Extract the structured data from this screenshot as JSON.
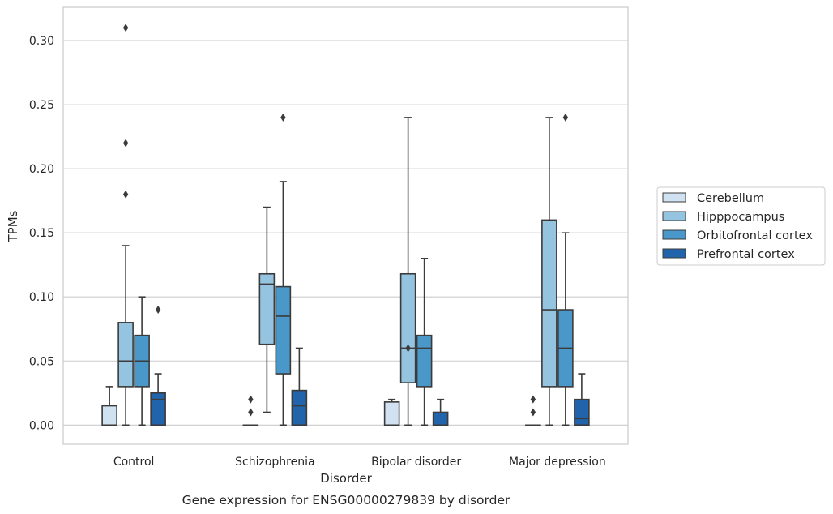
{
  "chart_data": {
    "type": "boxplot",
    "title": "",
    "caption": "Gene expression for ENSG00000279839 by disorder",
    "xlabel": "Disorder",
    "ylabel": "TPMs",
    "ylim": [
      -0.015,
      0.326
    ],
    "yticks": [
      0.0,
      0.05,
      0.1,
      0.15,
      0.2,
      0.25,
      0.3
    ],
    "ytick_labels": [
      "0.00",
      "0.05",
      "0.10",
      "0.15",
      "0.20",
      "0.25",
      "0.30"
    ],
    "grid": "horizontal",
    "legend_position": "right",
    "categories": [
      "Control",
      "Schizophrenia",
      "Bipolar disorder",
      "Major depression"
    ],
    "series": [
      {
        "name": "Cerebellum",
        "color": "#d0e1f2",
        "boxes": [
          {
            "whislo": 0.0,
            "q1": 0.0,
            "med": 0.0,
            "q3": 0.015,
            "whishi": 0.03,
            "fliers": []
          },
          {
            "whislo": 0.0,
            "q1": 0.0,
            "med": 0.0,
            "q3": 0.0,
            "whishi": 0.0,
            "fliers": [
              0.01,
              0.02
            ]
          },
          {
            "whislo": 0.0,
            "q1": 0.0,
            "med": 0.0,
            "q3": 0.018,
            "whishi": 0.02,
            "fliers": []
          },
          {
            "whislo": 0.0,
            "q1": 0.0,
            "med": 0.0,
            "q3": 0.0,
            "whishi": 0.0,
            "fliers": [
              0.01,
              0.02
            ]
          }
        ]
      },
      {
        "name": "Hipppocampus",
        "color": "#94c4df",
        "boxes": [
          {
            "whislo": 0.0,
            "q1": 0.03,
            "med": 0.05,
            "q3": 0.08,
            "whishi": 0.14,
            "fliers": [
              0.18,
              0.22,
              0.31
            ]
          },
          {
            "whislo": 0.01,
            "q1": 0.063,
            "med": 0.11,
            "q3": 0.118,
            "whishi": 0.17,
            "fliers": []
          },
          {
            "whislo": 0.0,
            "q1": 0.033,
            "med": 0.06,
            "q3": 0.118,
            "whishi": 0.24,
            "fliers": [
              0.06
            ]
          },
          {
            "whislo": 0.0,
            "q1": 0.03,
            "med": 0.09,
            "q3": 0.16,
            "whishi": 0.24,
            "fliers": []
          }
        ]
      },
      {
        "name": "Orbitofrontal cortex",
        "color": "#4a98c9",
        "boxes": [
          {
            "whislo": 0.0,
            "q1": 0.03,
            "med": 0.05,
            "q3": 0.07,
            "whishi": 0.1,
            "fliers": []
          },
          {
            "whislo": 0.0,
            "q1": 0.04,
            "med": 0.085,
            "q3": 0.108,
            "whishi": 0.19,
            "fliers": [
              0.24
            ]
          },
          {
            "whislo": 0.0,
            "q1": 0.03,
            "med": 0.06,
            "q3": 0.07,
            "whishi": 0.13,
            "fliers": []
          },
          {
            "whislo": 0.0,
            "q1": 0.03,
            "med": 0.06,
            "q3": 0.09,
            "whishi": 0.15,
            "fliers": [
              0.24
            ]
          }
        ]
      },
      {
        "name": "Prefrontal cortex",
        "color": "#2164ab",
        "boxes": [
          {
            "whislo": 0.0,
            "q1": 0.0,
            "med": 0.02,
            "q3": 0.025,
            "whishi": 0.04,
            "fliers": [
              0.09
            ]
          },
          {
            "whislo": 0.0,
            "q1": 0.0,
            "med": 0.015,
            "q3": 0.027,
            "whishi": 0.06,
            "fliers": []
          },
          {
            "whislo": 0.0,
            "q1": 0.0,
            "med": 0.0,
            "q3": 0.01,
            "whishi": 0.02,
            "fliers": []
          },
          {
            "whislo": 0.0,
            "q1": 0.0,
            "med": 0.005,
            "q3": 0.02,
            "whishi": 0.04,
            "fliers": []
          }
        ]
      }
    ]
  }
}
